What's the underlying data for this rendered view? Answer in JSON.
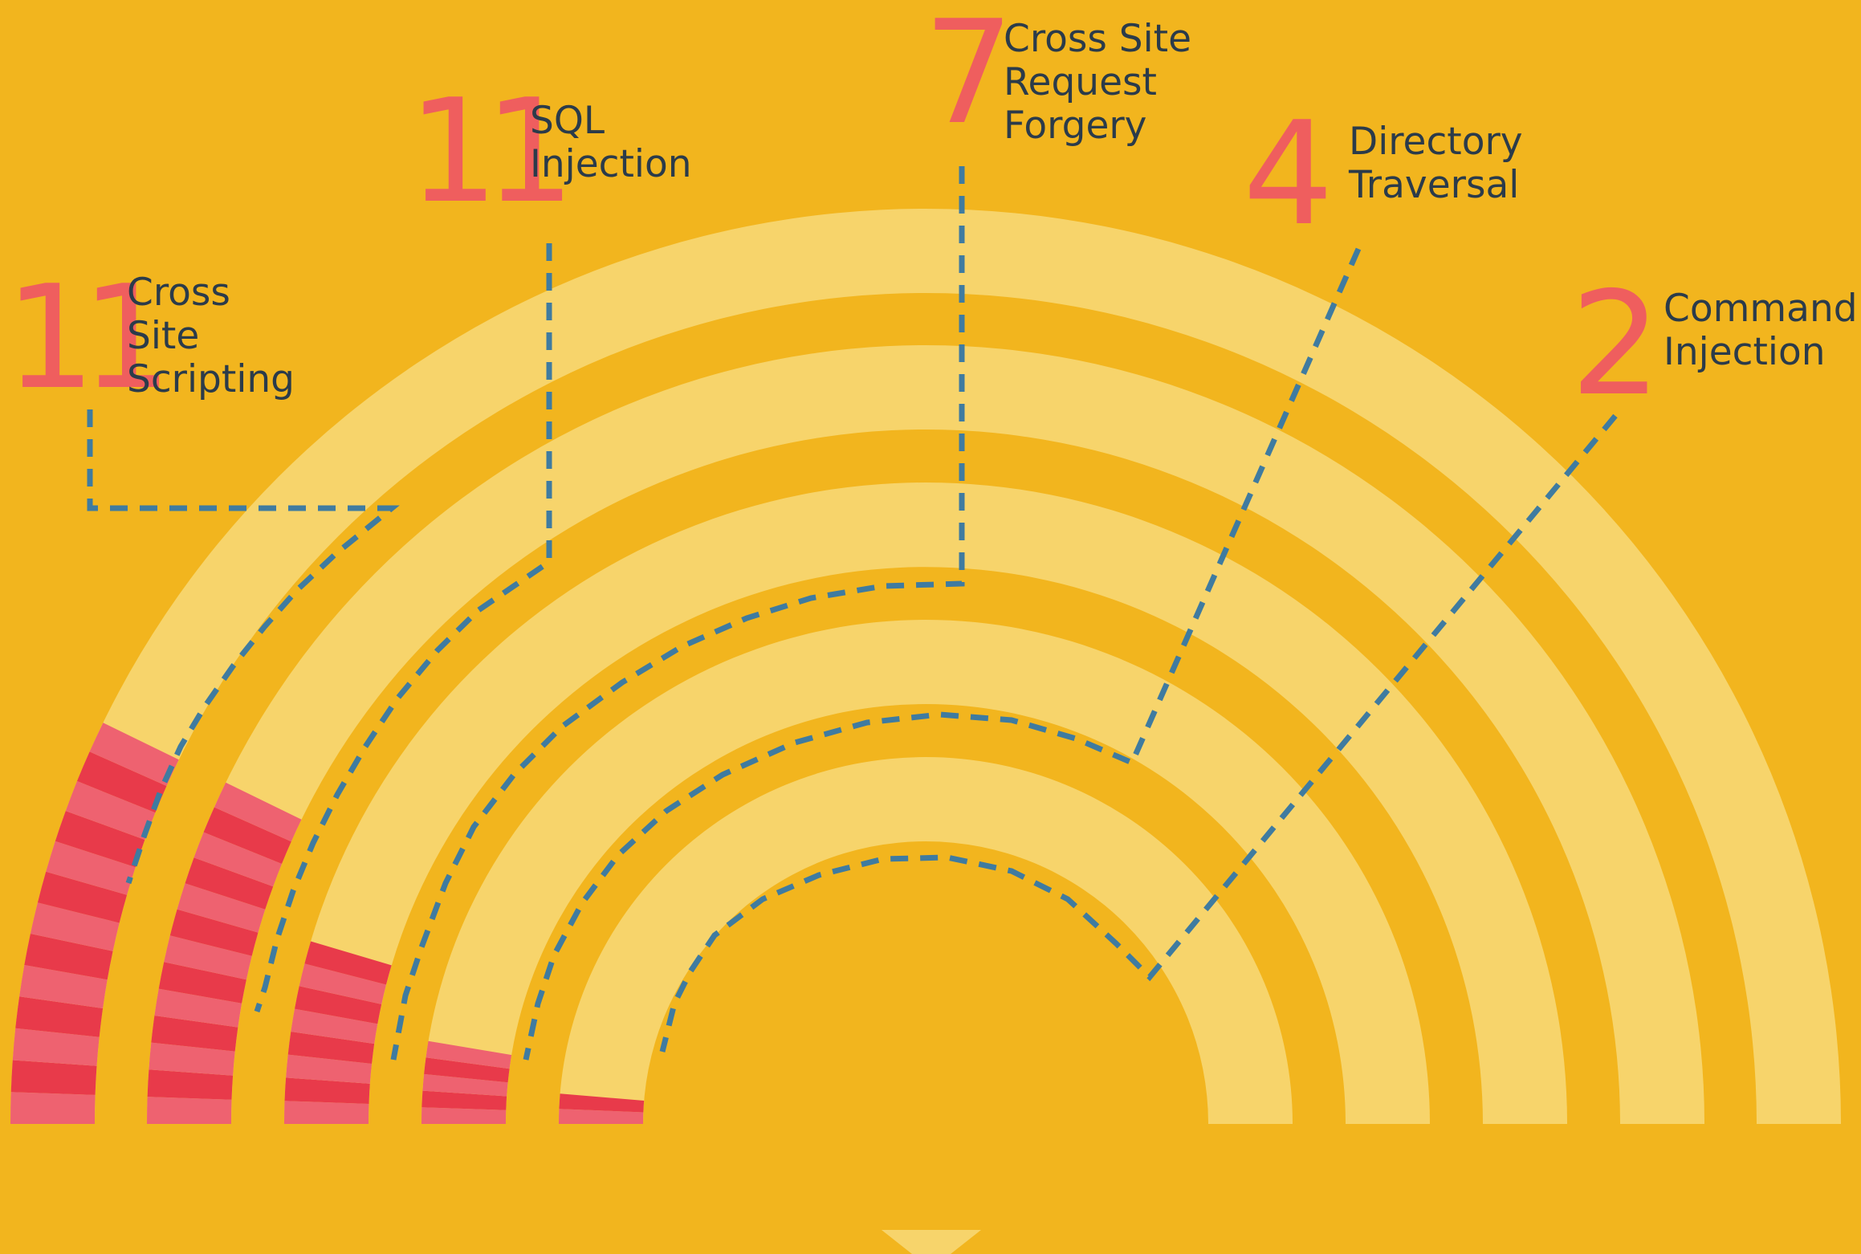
{
  "chart_data": {
    "type": "radial-bar",
    "title": "",
    "series": [
      {
        "name": "Cross Site Scripting",
        "value": 11
      },
      {
        "name": "SQL Injection",
        "value": 11
      },
      {
        "name": "Cross Site Request Forgery",
        "value": 7
      },
      {
        "name": "Directory Traversal",
        "value": 4
      },
      {
        "name": "Command Injection",
        "value": 2
      }
    ],
    "labels": [
      {
        "count": "11",
        "lines": [
          "Cross",
          "Site",
          "Scripting"
        ]
      },
      {
        "count": "11",
        "lines": [
          "SQL",
          "Injection"
        ]
      },
      {
        "count": "7",
        "lines": [
          "Cross Site",
          "Request",
          "Forgery"
        ]
      },
      {
        "count": "4",
        "lines": [
          "Directory",
          "Traversal"
        ]
      },
      {
        "count": "2",
        "lines": [
          "Command",
          "Injection"
        ]
      }
    ],
    "grid": false,
    "legend": "none"
  },
  "colors": {
    "background": "#F2B51E",
    "track": "#F7D46B",
    "track_seam": "#F4CD5E",
    "fill_dark": "#E83A4A",
    "fill_light": "#EE6270",
    "number": "#EF5E5E",
    "label": "#2B3B4A",
    "leader": "#3F7BA0"
  }
}
